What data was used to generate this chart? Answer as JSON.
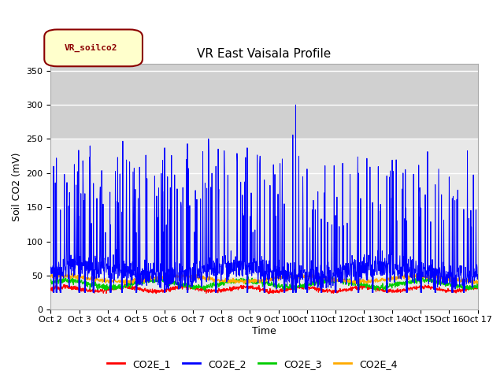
{
  "title": "VR East Vaisala Profile",
  "xlabel": "Time",
  "ylabel": "Soil CO2 (mV)",
  "ylim": [
    0,
    360
  ],
  "yticks": [
    0,
    50,
    100,
    150,
    200,
    250,
    300,
    350
  ],
  "xlim_days": [
    0,
    15
  ],
  "xtick_labels": [
    "Oct 2",
    "Oct 3",
    "Oct 4",
    "Oct 5",
    "Oct 6",
    "Oct 7",
    "Oct 8",
    "Oct 9",
    "Oct 10",
    "Oct 11",
    "Oct 12",
    "Oct 13",
    "Oct 14",
    "Oct 15",
    "Oct 16",
    "Oct 17"
  ],
  "gray_band": [
    250,
    360
  ],
  "plot_bg": "#e8e8e8",
  "legend_label": "VR_soilco2",
  "series_labels": [
    "CO2E_1",
    "CO2E_2",
    "CO2E_3",
    "CO2E_4"
  ],
  "series_colors": [
    "#ff0000",
    "#0000ff",
    "#00cc00",
    "#ffaa00"
  ],
  "title_fontsize": 11,
  "axis_label_fontsize": 9,
  "tick_fontsize": 8,
  "legend_fontsize": 9
}
